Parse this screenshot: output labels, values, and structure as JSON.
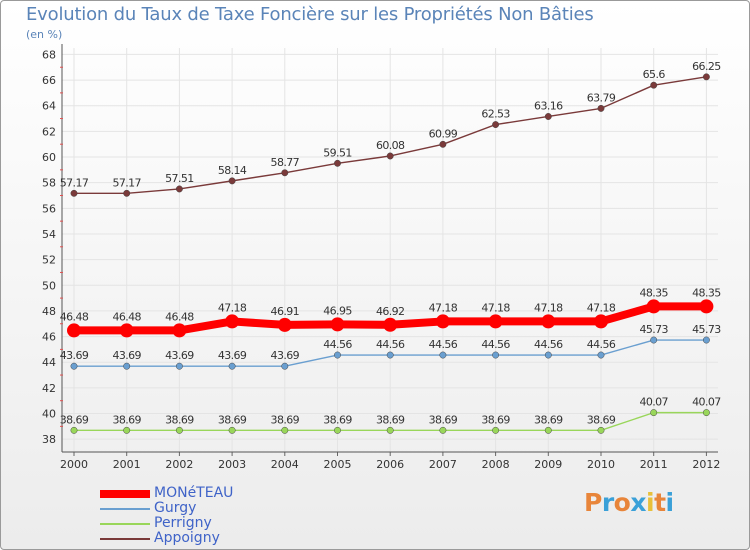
{
  "header": {
    "title": "Evolution du Taux de Taxe Foncière sur les Propriétés Non Bâties",
    "subtitle": "(en %)"
  },
  "logo": {
    "text": "Proxiti",
    "colors": [
      "#e8853a",
      "#3aa0d8",
      "#e8853a",
      "#3aa0d8",
      "#e8c03a",
      "#e8853a",
      "#3aa0d8"
    ]
  },
  "chart_data": {
    "type": "line",
    "categories": [
      "2000",
      "2001",
      "2002",
      "2003",
      "2004",
      "2005",
      "2006",
      "2007",
      "2008",
      "2009",
      "2010",
      "2011",
      "2012"
    ],
    "ylim": [
      37,
      68.5
    ],
    "yticks": [
      38,
      40,
      42,
      44,
      46,
      48,
      50,
      52,
      54,
      56,
      58,
      60,
      62,
      64,
      66,
      68
    ],
    "grid": true,
    "legend_position": "bottom-left",
    "series": [
      {
        "name": "MONéTEAU",
        "color": "#ff0000",
        "values": [
          46.48,
          46.48,
          46.48,
          47.18,
          46.91,
          46.95,
          46.92,
          47.18,
          47.18,
          47.18,
          47.18,
          48.35,
          48.35
        ],
        "labels": [
          "46.48",
          "46.48",
          "46.48",
          "47.18",
          "46.91",
          "46.95",
          "46.92",
          "47.18",
          "47.18",
          "47.18",
          "47.18",
          "48.35",
          "48.35"
        ]
      },
      {
        "name": "Gurgy",
        "color": "#6a9fd0",
        "values": [
          43.69,
          43.69,
          43.69,
          43.69,
          43.69,
          44.56,
          44.56,
          44.56,
          44.56,
          44.56,
          44.56,
          45.73,
          45.73
        ],
        "labels": [
          "43.69",
          "43.69",
          "43.69",
          "43.69",
          "43.69",
          "44.56",
          "44.56",
          "44.56",
          "44.56",
          "44.56",
          "44.56",
          "45.73",
          "45.73"
        ]
      },
      {
        "name": "Perrigny",
        "color": "#99d65a",
        "values": [
          38.69,
          38.69,
          38.69,
          38.69,
          38.69,
          38.69,
          38.69,
          38.69,
          38.69,
          38.69,
          38.69,
          40.07,
          40.07
        ],
        "labels": [
          "38.69",
          "38.69",
          "38.69",
          "38.69",
          "38.69",
          "38.69",
          "38.69",
          "38.69",
          "38.69",
          "38.69",
          "38.69",
          "40.07",
          "40.07"
        ]
      },
      {
        "name": "Appoigny",
        "color": "#7a3a3a",
        "values": [
          57.17,
          57.17,
          57.51,
          58.14,
          58.77,
          59.51,
          60.08,
          60.99,
          62.53,
          63.16,
          63.79,
          65.6,
          66.25
        ],
        "labels": [
          "57.17",
          "57.17",
          "57.51",
          "58.14",
          "58.77",
          "59.51",
          "60.08",
          "60.99",
          "62.53",
          "63.16",
          "63.79",
          "65.6",
          "66.25"
        ]
      }
    ]
  }
}
